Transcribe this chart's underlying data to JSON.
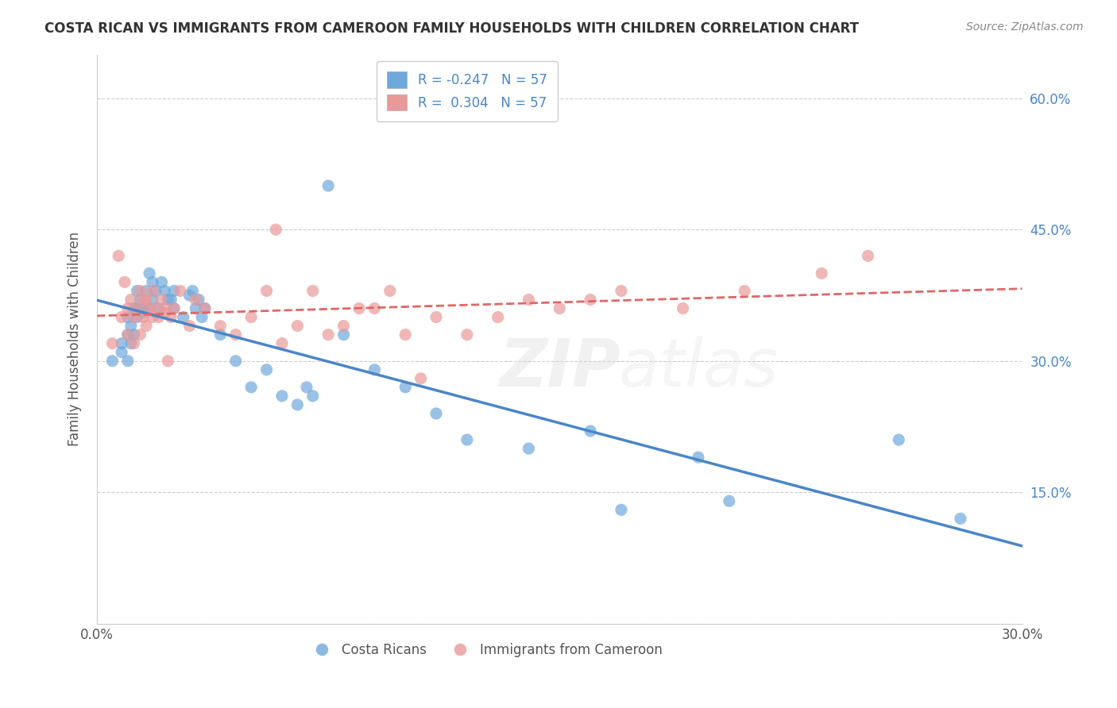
{
  "title": "COSTA RICAN VS IMMIGRANTS FROM CAMEROON FAMILY HOUSEHOLDS WITH CHILDREN CORRELATION CHART",
  "source": "Source: ZipAtlas.com",
  "ylabel": "Family Households with Children",
  "x_min": 0.0,
  "x_max": 0.3,
  "y_min": 0.0,
  "y_max": 0.65,
  "x_ticks": [
    0.0,
    0.05,
    0.1,
    0.15,
    0.2,
    0.25,
    0.3
  ],
  "y_ticks": [
    0.0,
    0.15,
    0.3,
    0.45,
    0.6
  ],
  "y_tick_labels_right": [
    "",
    "15.0%",
    "30.0%",
    "45.0%",
    "60.0%"
  ],
  "legend_r_blue": "-0.247",
  "legend_n_blue": "57",
  "legend_r_pink": "0.304",
  "legend_n_pink": "57",
  "legend_label_blue": "Costa Ricans",
  "legend_label_pink": "Immigrants from Cameroon",
  "blue_color": "#6fa8dc",
  "pink_color": "#ea9999",
  "blue_line_color": "#4a86c8",
  "pink_line_color": "#e06666",
  "blue_scatter_x": [
    0.005,
    0.008,
    0.008,
    0.01,
    0.01,
    0.01,
    0.011,
    0.011,
    0.012,
    0.012,
    0.013,
    0.013,
    0.013,
    0.014,
    0.015,
    0.015,
    0.016,
    0.017,
    0.017,
    0.018,
    0.018,
    0.019,
    0.02,
    0.021,
    0.022,
    0.023,
    0.024,
    0.025,
    0.025,
    0.028,
    0.03,
    0.031,
    0.032,
    0.033,
    0.034,
    0.035,
    0.04,
    0.045,
    0.05,
    0.055,
    0.06,
    0.065,
    0.068,
    0.07,
    0.075,
    0.08,
    0.09,
    0.1,
    0.11,
    0.12,
    0.14,
    0.16,
    0.17,
    0.195,
    0.205,
    0.26,
    0.28
  ],
  "blue_scatter_y": [
    0.3,
    0.32,
    0.31,
    0.35,
    0.33,
    0.3,
    0.34,
    0.32,
    0.36,
    0.33,
    0.36,
    0.38,
    0.35,
    0.37,
    0.36,
    0.355,
    0.38,
    0.4,
    0.36,
    0.37,
    0.39,
    0.38,
    0.36,
    0.39,
    0.38,
    0.37,
    0.37,
    0.38,
    0.36,
    0.35,
    0.375,
    0.38,
    0.36,
    0.37,
    0.35,
    0.36,
    0.33,
    0.3,
    0.27,
    0.29,
    0.26,
    0.25,
    0.27,
    0.26,
    0.5,
    0.33,
    0.29,
    0.27,
    0.24,
    0.21,
    0.2,
    0.22,
    0.13,
    0.19,
    0.14,
    0.21,
    0.12
  ],
  "pink_scatter_x": [
    0.005,
    0.007,
    0.008,
    0.009,
    0.01,
    0.01,
    0.011,
    0.012,
    0.012,
    0.013,
    0.014,
    0.014,
    0.015,
    0.015,
    0.016,
    0.016,
    0.017,
    0.018,
    0.018,
    0.019,
    0.02,
    0.021,
    0.022,
    0.022,
    0.023,
    0.024,
    0.025,
    0.027,
    0.03,
    0.032,
    0.035,
    0.04,
    0.045,
    0.05,
    0.055,
    0.058,
    0.06,
    0.065,
    0.07,
    0.075,
    0.08,
    0.085,
    0.09,
    0.095,
    0.1,
    0.105,
    0.11,
    0.12,
    0.13,
    0.14,
    0.15,
    0.16,
    0.17,
    0.19,
    0.21,
    0.235,
    0.25
  ],
  "pink_scatter_y": [
    0.32,
    0.42,
    0.35,
    0.39,
    0.33,
    0.36,
    0.37,
    0.35,
    0.32,
    0.36,
    0.38,
    0.33,
    0.37,
    0.35,
    0.37,
    0.34,
    0.36,
    0.38,
    0.35,
    0.36,
    0.35,
    0.37,
    0.355,
    0.36,
    0.3,
    0.35,
    0.36,
    0.38,
    0.34,
    0.37,
    0.36,
    0.34,
    0.33,
    0.35,
    0.38,
    0.45,
    0.32,
    0.34,
    0.38,
    0.33,
    0.34,
    0.36,
    0.36,
    0.38,
    0.33,
    0.28,
    0.35,
    0.33,
    0.35,
    0.37,
    0.36,
    0.37,
    0.38,
    0.36,
    0.38,
    0.4,
    0.42
  ]
}
